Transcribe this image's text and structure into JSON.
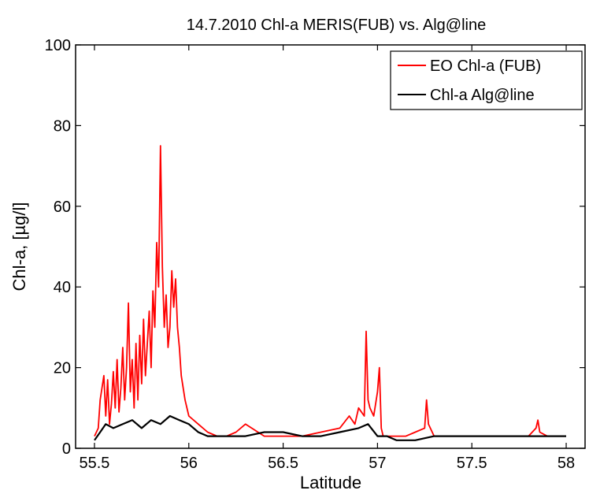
{
  "chart_data": {
    "type": "line",
    "title": "14.7.2010 Chl-a MERIS(FUB) vs. Alg@line",
    "xlabel": "Latitude",
    "ylabel": "Chl-a, [µg/l]",
    "xlim": [
      55.4,
      58.1
    ],
    "ylim": [
      0,
      100
    ],
    "xticks": [
      55.5,
      56,
      56.5,
      57,
      57.5,
      58
    ],
    "xtick_labels": [
      "55.5",
      "56",
      "56.5",
      "57",
      "57.5",
      "58"
    ],
    "yticks": [
      0,
      20,
      40,
      60,
      80,
      100
    ],
    "ytick_labels": [
      "0",
      "20",
      "40",
      "60",
      "80",
      "100"
    ],
    "grid": false,
    "legend_position": "top-right",
    "series": [
      {
        "name": "EO Chl-a (FUB)",
        "color": "#ff0000",
        "x": [
          55.5,
          55.52,
          55.53,
          55.55,
          55.56,
          55.57,
          55.58,
          55.59,
          55.6,
          55.61,
          55.62,
          55.63,
          55.64,
          55.65,
          55.66,
          55.67,
          55.68,
          55.69,
          55.7,
          55.71,
          55.72,
          55.73,
          55.74,
          55.75,
          55.76,
          55.77,
          55.78,
          55.79,
          55.8,
          55.81,
          55.82,
          55.83,
          55.84,
          55.85,
          55.86,
          55.87,
          55.88,
          55.89,
          55.9,
          55.91,
          55.92,
          55.93,
          55.94,
          55.95,
          55.96,
          55.97,
          55.98,
          56.0,
          56.05,
          56.1,
          56.15,
          56.2,
          56.25,
          56.3,
          56.4,
          56.5,
          56.6,
          56.7,
          56.8,
          56.85,
          56.88,
          56.9,
          56.93,
          56.94,
          56.95,
          56.96,
          56.98,
          57.0,
          57.01,
          57.02,
          57.03,
          57.05,
          57.1,
          57.15,
          57.2,
          57.25,
          57.26,
          57.27,
          57.3,
          57.4,
          57.5,
          57.55,
          57.6,
          57.7,
          57.8,
          57.84,
          57.85,
          57.86,
          57.9,
          58.0
        ],
        "y": [
          3,
          5,
          12,
          18,
          8,
          17,
          6,
          11,
          19,
          10,
          22,
          9,
          15,
          25,
          12,
          20,
          36,
          14,
          22,
          10,
          26,
          12,
          28,
          16,
          32,
          18,
          26,
          34,
          20,
          39,
          30,
          51,
          40,
          75,
          45,
          30,
          38,
          25,
          30,
          44,
          35,
          42,
          30,
          25,
          18,
          15,
          12,
          8,
          6,
          4,
          3,
          3,
          4,
          6,
          3,
          3,
          3,
          4,
          5,
          8,
          6,
          10,
          8,
          29,
          12,
          10,
          8,
          14,
          20,
          5,
          3,
          3,
          3,
          3,
          4,
          5,
          12,
          6,
          3,
          3,
          3,
          3,
          3,
          3,
          3,
          5,
          7,
          4,
          3,
          3
        ]
      },
      {
        "name": "Chl-a Alg@line",
        "color": "#000000",
        "x": [
          55.5,
          55.53,
          55.56,
          55.6,
          55.65,
          55.7,
          55.75,
          55.8,
          55.85,
          55.9,
          55.95,
          56.0,
          56.05,
          56.1,
          56.2,
          56.3,
          56.4,
          56.5,
          56.6,
          56.7,
          56.8,
          56.9,
          56.95,
          57.0,
          57.05,
          57.1,
          57.2,
          57.3,
          57.4,
          57.5,
          57.6,
          57.7,
          57.8,
          57.9,
          58.0
        ],
        "y": [
          2,
          4,
          6,
          5,
          6,
          7,
          5,
          7,
          6,
          8,
          7,
          6,
          4,
          3,
          3,
          3,
          4,
          4,
          3,
          3,
          4,
          5,
          6,
          3,
          3,
          2,
          2,
          3,
          3,
          3,
          3,
          3,
          3,
          3,
          3
        ]
      }
    ]
  }
}
